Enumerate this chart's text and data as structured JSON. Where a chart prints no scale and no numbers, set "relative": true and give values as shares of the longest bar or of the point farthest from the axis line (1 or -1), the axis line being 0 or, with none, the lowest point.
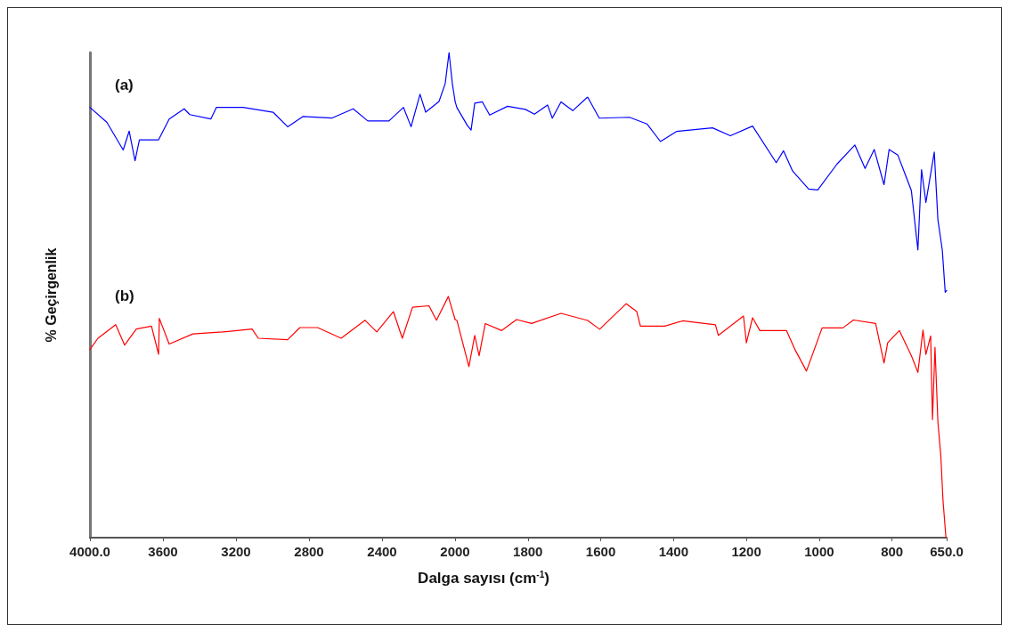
{
  "chart_data": [
    {
      "type": "line",
      "relative": true,
      "xlabel": "Dalga sayısı (cm$^{-1}$)",
      "ylabel": "% Geçirgenlik",
      "xlim": [
        4000,
        2000
      ],
      "xticks": [
        {
          "value": 4000,
          "label": "4000.0"
        },
        3600,
        3200,
        2800,
        2400,
        2000
      ],
      "grid": false,
      "legend": false,
      "marker": "none",
      "line_style": "solid",
      "series": [
        {
          "name": "(a)",
          "color": "#0000ff",
          "x": [
            4000,
            3907,
            3818,
            3785,
            3753,
            3729,
            3624,
            3566,
            3484,
            3453,
            3338,
            3307,
            3161,
            2997,
            2917,
            2834,
            2673,
            2558,
            2478,
            2362,
            2283,
            2241,
            2192,
            2161,
            2088,
            2054,
            2033,
            2015,
            2000
          ],
          "values": [
            0.887,
            0.856,
            0.799,
            0.838,
            0.777,
            0.82,
            0.82,
            0.863,
            0.884,
            0.872,
            0.863,
            0.887,
            0.887,
            0.877,
            0.847,
            0.868,
            0.865,
            0.884,
            0.859,
            0.859,
            0.887,
            0.847,
            0.914,
            0.877,
            0.899,
            0.936,
            1.0,
            0.936,
            0.9
          ]
        },
        {
          "name": "(b)",
          "color": "#ff0000",
          "x": [
            4000,
            3956,
            3859,
            3810,
            3746,
            3663,
            3624,
            3620,
            3566,
            3436,
            3273,
            3112,
            3078,
            2917,
            2850,
            2753,
            2624,
            2493,
            2429,
            2338,
            2289,
            2233,
            2143,
            2102,
            2037,
            2000
          ],
          "values": [
            0.388,
            0.411,
            0.439,
            0.397,
            0.43,
            0.436,
            0.378,
            0.452,
            0.399,
            0.42,
            0.424,
            0.43,
            0.411,
            0.408,
            0.433,
            0.433,
            0.411,
            0.448,
            0.424,
            0.466,
            0.411,
            0.475,
            0.478,
            0.448,
            0.497,
            0.45
          ]
        }
      ]
    },
    {
      "type": "line",
      "relative": true,
      "xlim": [
        2000,
        650
      ],
      "xticks": [
        {
          "value": 2000,
          "label": null
        },
        1800,
        1600,
        1400,
        1200,
        1000,
        800,
        {
          "value": 650,
          "label": "650.0"
        }
      ],
      "grid": false,
      "legend": false,
      "marker": "none",
      "line_style": "solid",
      "series": [
        {
          "color": "#0000ff",
          "x": [
            2000,
            1995,
            1966,
            1956,
            1946,
            1925,
            1905,
            1856,
            1807,
            1782,
            1746,
            1733,
            1709,
            1677,
            1636,
            1604,
            1521,
            1473,
            1436,
            1391,
            1293,
            1244,
            1183,
            1118,
            1098,
            1073,
            1029,
            1004,
            951,
            902,
            874,
            849,
            822,
            808,
            784,
            747,
            729,
            719,
            707,
            684,
            674,
            662,
            654,
            650
          ],
          "values": [
            0.99,
            0.976,
            0.935,
            0.925,
            0.986,
            0.989,
            0.959,
            0.979,
            0.972,
            0.961,
            0.982,
            0.952,
            0.989,
            0.969,
            1.0,
            0.952,
            0.954,
            0.939,
            0.899,
            0.922,
            0.93,
            0.912,
            0.934,
            0.851,
            0.878,
            0.832,
            0.791,
            0.789,
            0.848,
            0.891,
            0.838,
            0.881,
            0.801,
            0.881,
            0.868,
            0.788,
            0.653,
            0.835,
            0.761,
            0.875,
            0.721,
            0.653,
            0.557,
            0.561
          ]
        },
        {
          "color": "#ff0000",
          "x": [
            2000,
            1995,
            1962,
            1946,
            1934,
            1917,
            1872,
            1831,
            1790,
            1709,
            1636,
            1603,
            1530,
            1501,
            1491,
            1424,
            1375,
            1285,
            1277,
            1208,
            1200,
            1183,
            1163,
            1090,
            1066,
            1035,
            992,
            935,
            906,
            845,
            822,
            812,
            780,
            747,
            729,
            715,
            707,
            694,
            689,
            682,
            674,
            666,
            660,
            652
          ],
          "values": [
            0.495,
            0.493,
            0.388,
            0.459,
            0.413,
            0.486,
            0.47,
            0.495,
            0.486,
            0.509,
            0.493,
            0.473,
            0.531,
            0.513,
            0.48,
            0.48,
            0.492,
            0.483,
            0.459,
            0.503,
            0.442,
            0.499,
            0.47,
            0.47,
            0.426,
            0.378,
            0.476,
            0.476,
            0.494,
            0.486,
            0.396,
            0.442,
            0.47,
            0.413,
            0.375,
            0.471,
            0.416,
            0.458,
            0.268,
            0.432,
            0.262,
            0.185,
            0.084,
            0.0
          ]
        }
      ]
    }
  ]
}
